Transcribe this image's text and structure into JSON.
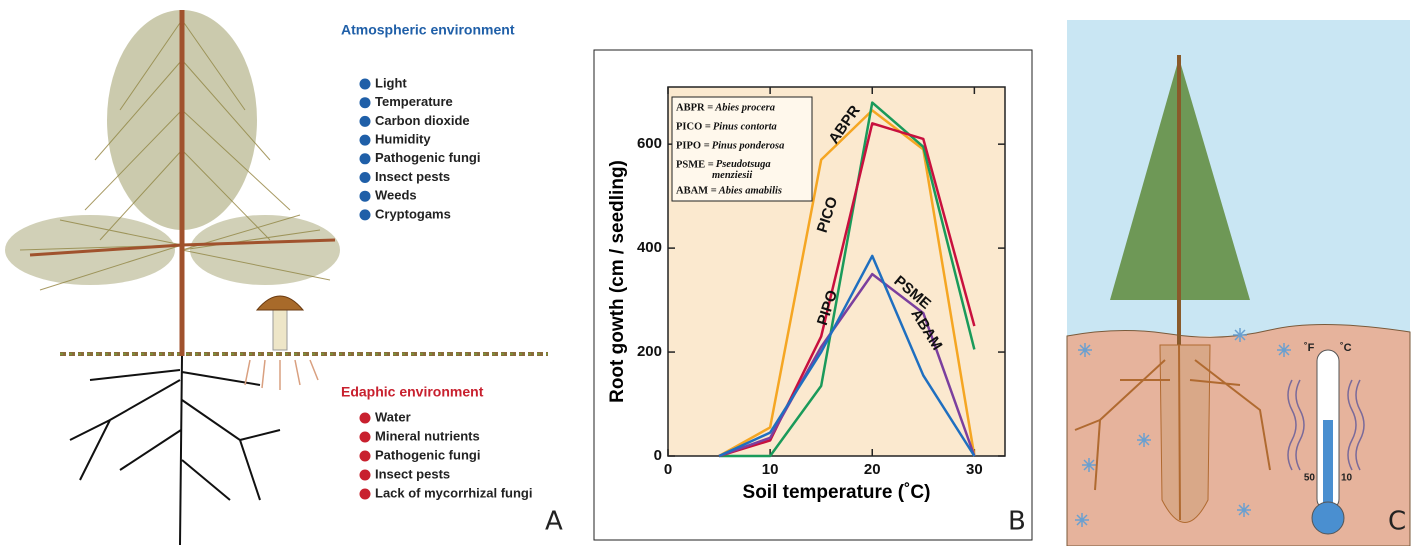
{
  "panel_a": {
    "letter": "A",
    "atmospheric": {
      "title": "Atmospheric environment",
      "items": [
        "Light",
        "Temperature",
        "Carbon dioxide",
        "Humidity",
        "Pathogenic fungi",
        "Insect pests",
        "Weeds",
        "Cryptogams"
      ]
    },
    "edaphic": {
      "title": "Edaphic environment",
      "items": [
        "Water",
        "Mineral nutrients",
        "Pathogenic fungi",
        "Insect pests",
        "Lack of mycorrhizal fungi"
      ]
    }
  },
  "chart_data": {
    "type": "line",
    "letter": "B",
    "x_label": "Soil temperature (˚C)",
    "y_label": "Root gowth (cm / seedling)",
    "x": [
      5,
      10,
      15,
      20,
      25,
      30
    ],
    "xlim": [
      0,
      33
    ],
    "xticks": [
      0,
      10,
      20,
      30
    ],
    "ylim": [
      0,
      710
    ],
    "yticks": [
      0,
      200,
      400,
      600
    ],
    "grid": false,
    "background": "#fbe9cf",
    "series": [
      {
        "name": "ABPR",
        "color": "#f5a623",
        "values": [
          0,
          55,
          570,
          665,
          590,
          0
        ]
      },
      {
        "name": "PICO",
        "color": "#1a9a5a",
        "values": [
          0,
          0,
          135,
          680,
          595,
          205
        ]
      },
      {
        "name": "PIPO",
        "color": "#c8103e",
        "values": [
          0,
          30,
          230,
          640,
          610,
          250
        ]
      },
      {
        "name": "PSME",
        "color": "#7b3f9e",
        "values": [
          0,
          35,
          210,
          350,
          275,
          0
        ]
      },
      {
        "name": "ABAM",
        "color": "#1f6fc0",
        "values": [
          0,
          45,
          200,
          385,
          155,
          0
        ]
      }
    ],
    "legend_box": [
      {
        "abbr": "ABPR =",
        "species": "Abies procera"
      },
      {
        "abbr": "PICO =",
        "species": "Pinus contorta"
      },
      {
        "abbr": "PIPO =",
        "species": "Pinus ponderosa"
      },
      {
        "abbr": "PSME =",
        "species": "Pseudotsuga menziesii"
      },
      {
        "abbr": "ABAM =",
        "species": "Abies amabilis"
      }
    ]
  },
  "panel_c": {
    "letter": "C",
    "thermometer": {
      "f_unit": "˚F",
      "c_unit": "˚C",
      "f_mark": "50",
      "c_mark": "10"
    }
  }
}
